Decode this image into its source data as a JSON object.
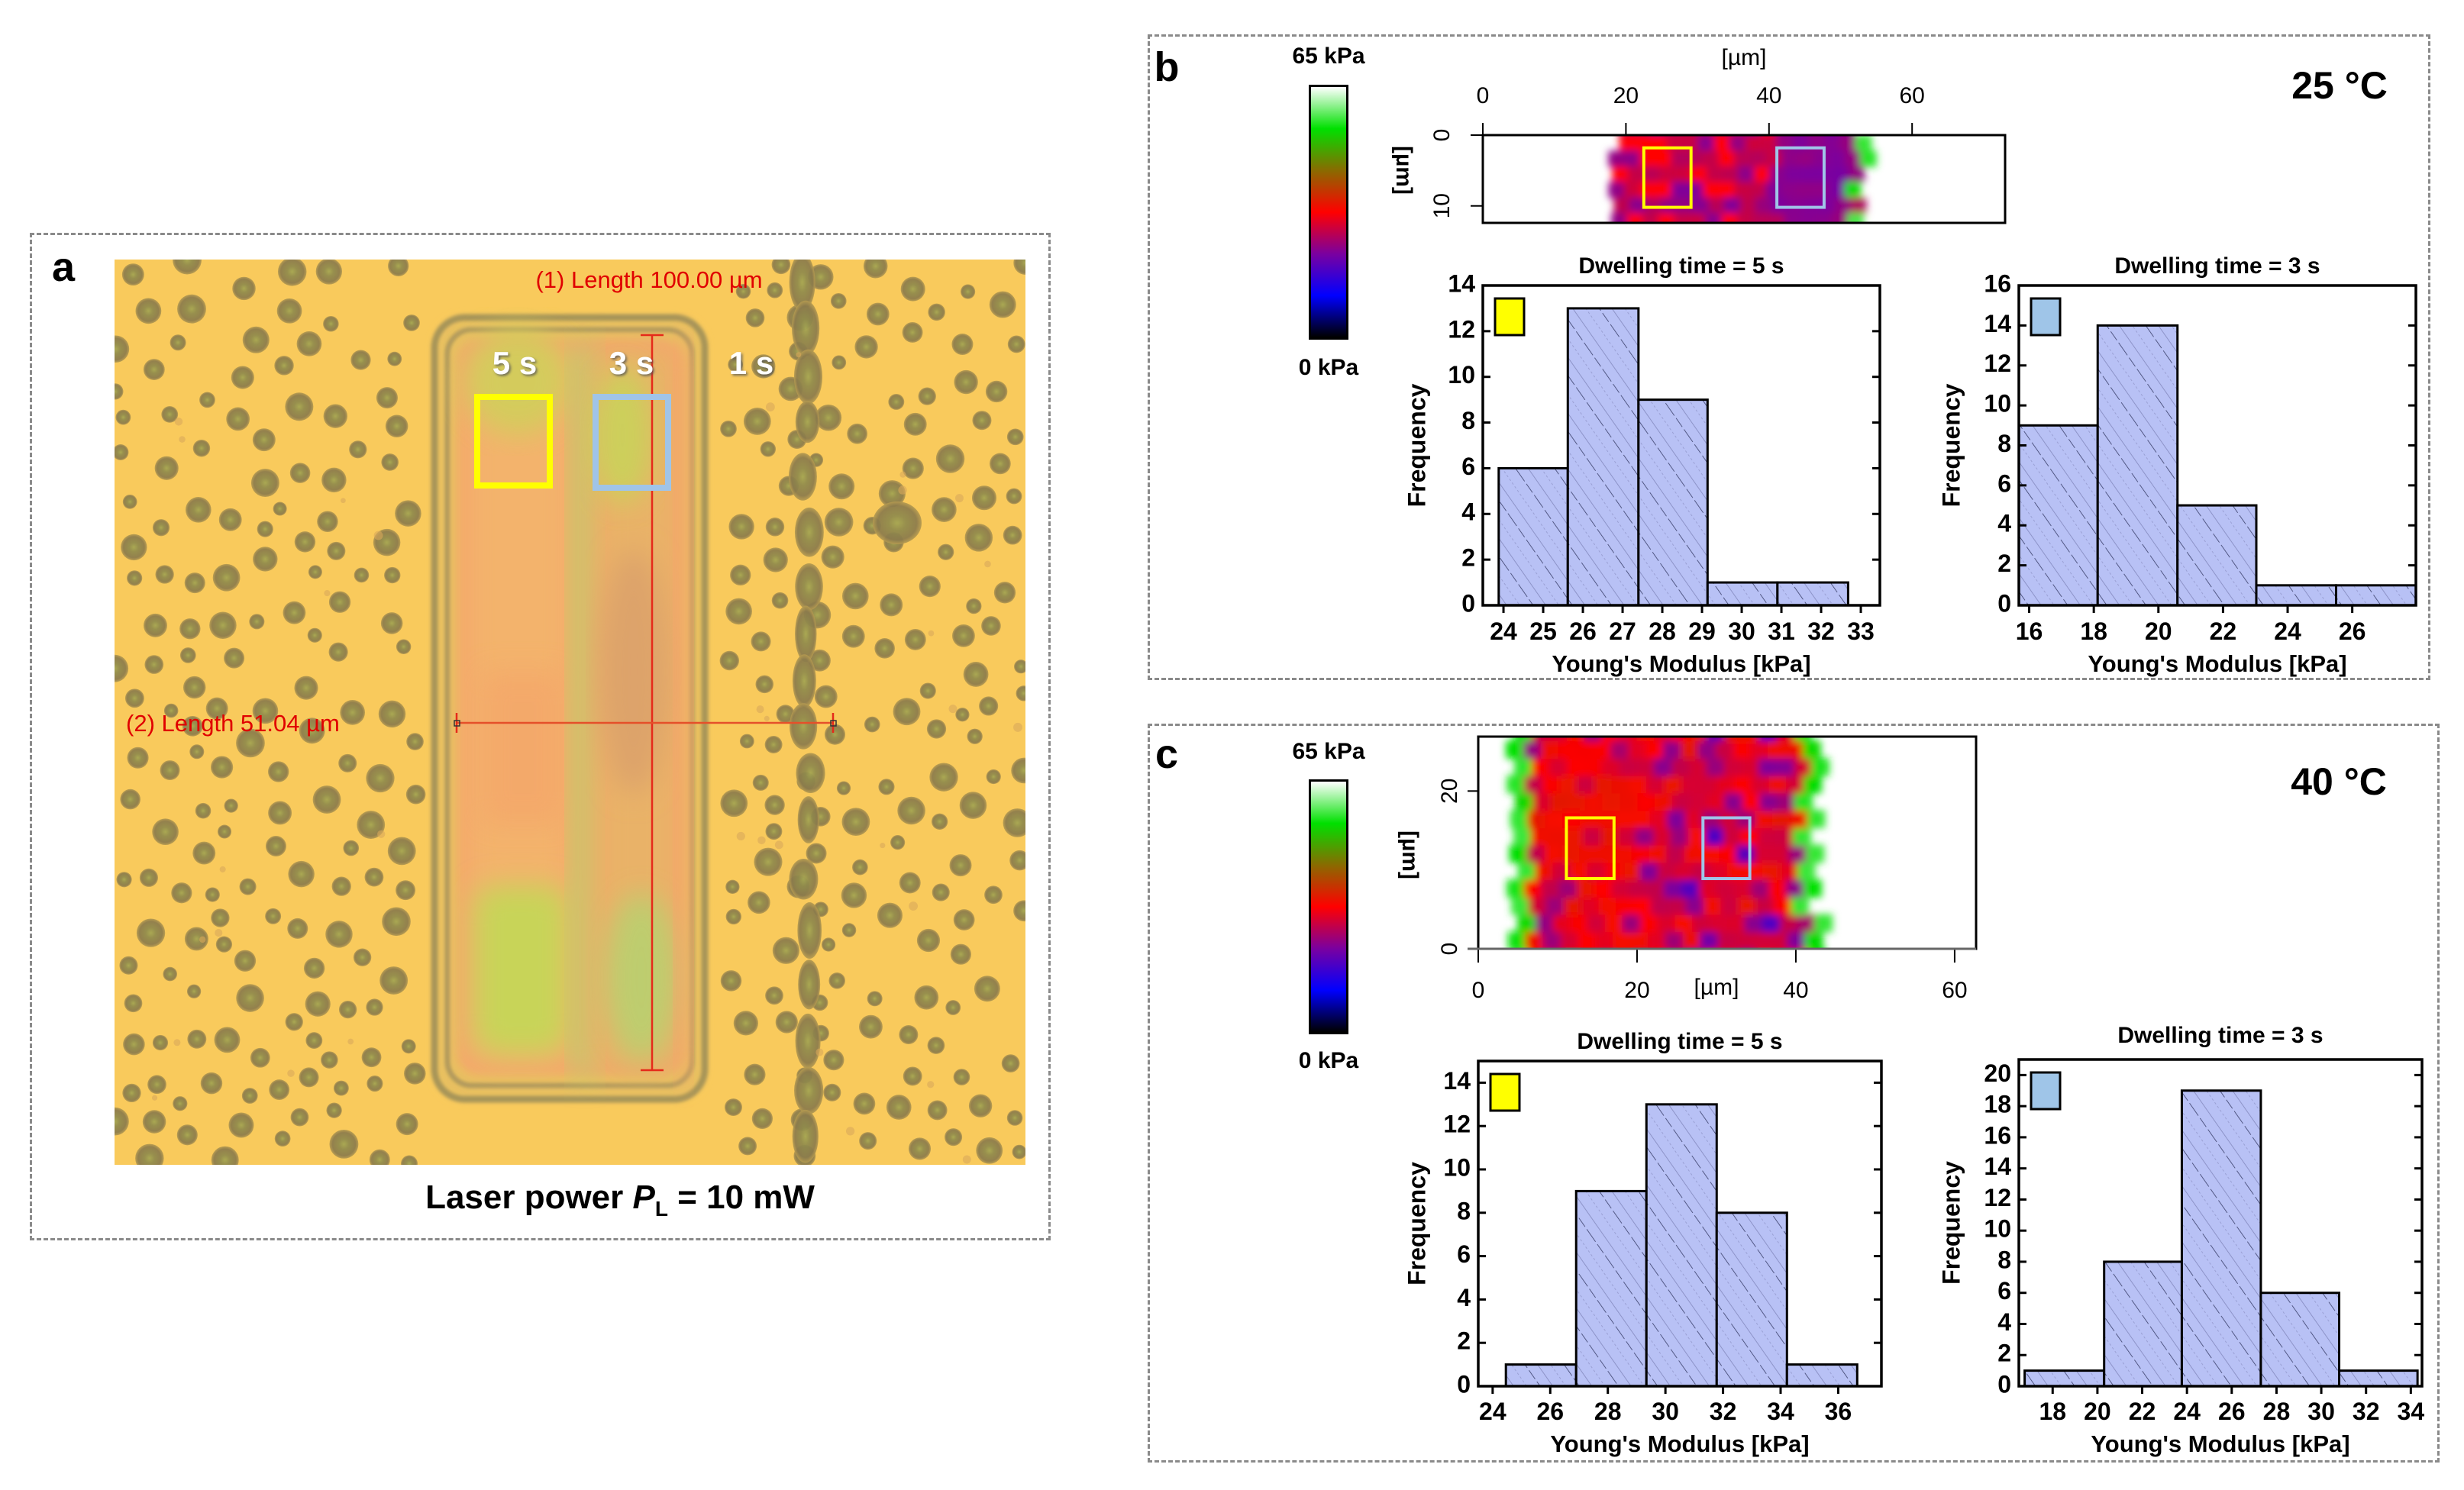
{
  "figure": {
    "panel_a": {
      "letter": "a",
      "caption": {
        "prefix": "Laser power ",
        "symbol": "P",
        "subscript": "L",
        "suffix": " = 10 mW"
      },
      "measurements": [
        {
          "label": "(1)  Length 100.00 µm",
          "color": "#e00000"
        },
        {
          "label": "(2)  Length 51.04 µm",
          "color": "#e00000"
        }
      ],
      "dwell_labels": [
        "5 s",
        "3 s",
        "1 s"
      ],
      "roi_colors": {
        "dwell_5s": "#ffff00",
        "dwell_3s": "#a0c4e8"
      },
      "colors": {
        "substrate": "#f9ca5c",
        "droplet": "#8c7b4c"
      }
    },
    "panel_b": {
      "letter": "b",
      "temperature": "25 °C",
      "colorbar": {
        "max_label": "65 kPa",
        "min_label": "0 kPa"
      },
      "map": {
        "x_label": "[µm]",
        "y_label": "[µm]",
        "x_ticks": [
          0,
          20,
          40,
          60
        ],
        "y_ticks": [
          0,
          10
        ],
        "x_range": [
          0,
          73
        ],
        "y_range": [
          0,
          12.4
        ],
        "y_inverted": true,
        "sample_extent_x": [
          18,
          53
        ],
        "roi_5s": {
          "x": [
            22.5,
            29.1
          ],
          "y": [
            1.8,
            10.2
          ]
        },
        "roi_3s": {
          "x": [
            41.1,
            47.7
          ],
          "y": [
            1.8,
            10.2
          ]
        },
        "dominant": "blue-purple"
      }
    },
    "panel_c": {
      "letter": "c",
      "temperature": "40 °C",
      "colorbar": {
        "max_label": "65 kPa",
        "min_label": "0 kPa"
      },
      "map": {
        "x_label": "[µm]",
        "y_label": "[µm]",
        "x_ticks": [
          0,
          20,
          40,
          60
        ],
        "y_ticks": [
          0,
          20
        ],
        "x_range": [
          0,
          62.7
        ],
        "y_range": [
          0,
          26.9
        ],
        "y_inverted": false,
        "sample_extent_x": [
          4,
          42
        ],
        "roi_5s": {
          "x": [
            11.1,
            17.1
          ],
          "y": [
            8.9,
            16.6
          ]
        },
        "roi_3s": {
          "x": [
            28.3,
            34.2
          ],
          "y": [
            8.9,
            16.6
          ]
        },
        "dominant": "red"
      }
    },
    "colormap": {
      "min_kPa": 0,
      "max_kPa": 65,
      "stops": [
        "#000000",
        "#0000ff",
        "#7a00a0",
        "#ff0000",
        "#8a6a00",
        "#00e000",
        "#ffffff"
      ]
    },
    "histogram_style": {
      "fill": "#b8c1f5",
      "edge": "#000000"
    }
  },
  "chart_data": [
    {
      "type": "bar",
      "id": "b_5s",
      "title": "Dwelling time = 5 s",
      "xlabel": "Young's Modulus [kPa]",
      "ylabel": "Frequency",
      "legend_color": "#ffff00",
      "bin_edges": [
        23.88,
        25.62,
        27.4,
        29.14,
        30.9,
        32.68
      ],
      "values": [
        6,
        13,
        9,
        1,
        1
      ],
      "xlim": [
        23.48,
        33.48
      ],
      "ylim": [
        0,
        14
      ],
      "x_ticks": [
        24,
        25,
        26,
        27,
        28,
        29,
        30,
        31,
        32,
        33
      ],
      "y_ticks": [
        0,
        2,
        4,
        6,
        8,
        10,
        12,
        14
      ]
    },
    {
      "type": "bar",
      "id": "b_3s",
      "title": "Dwelling time = 3 s",
      "xlabel": "Young's Modulus [kPa]",
      "ylabel": "Frequency",
      "legend_color": "#9fc5e8",
      "bin_edges": [
        15.68,
        18.12,
        20.59,
        23.03,
        25.5,
        27.97
      ],
      "values": [
        9,
        14,
        5,
        1,
        1
      ],
      "xlim": [
        15.68,
        27.97
      ],
      "ylim": [
        0,
        16
      ],
      "x_ticks": [
        16,
        18,
        20,
        22,
        24,
        26
      ],
      "y_ticks": [
        0,
        2,
        4,
        6,
        8,
        10,
        12,
        14,
        16
      ]
    },
    {
      "type": "bar",
      "id": "c_5s",
      "title": "Dwelling time = 5 s",
      "xlabel": "Young's Modulus [kPa]",
      "ylabel": "Frequency",
      "legend_color": "#ffff00",
      "bin_edges": [
        24.46,
        26.9,
        29.34,
        31.78,
        34.22,
        36.66
      ],
      "values": [
        1,
        9,
        13,
        8,
        1
      ],
      "xlim": [
        23.5,
        37.5
      ],
      "ylim": [
        0,
        15
      ],
      "x_ticks": [
        24,
        26,
        28,
        30,
        32,
        34,
        36
      ],
      "y_ticks": [
        0,
        2,
        4,
        6,
        8,
        10,
        12,
        14
      ]
    },
    {
      "type": "bar",
      "id": "c_3s",
      "title": "Dwelling time = 3 s",
      "xlabel": "Young's Modulus [kPa]",
      "ylabel": "Frequency",
      "legend_color": "#9fc5e8",
      "bin_edges": [
        16.75,
        20.3,
        23.77,
        27.3,
        30.8,
        34.3
      ],
      "values": [
        1,
        8,
        19,
        6,
        1
      ],
      "xlim": [
        16.49,
        34.5
      ],
      "ylim": [
        0,
        21
      ],
      "x_ticks": [
        18,
        20,
        22,
        24,
        26,
        28,
        30,
        32,
        34
      ],
      "y_ticks": [
        0,
        2,
        4,
        6,
        8,
        10,
        12,
        14,
        16,
        18,
        20
      ]
    }
  ]
}
